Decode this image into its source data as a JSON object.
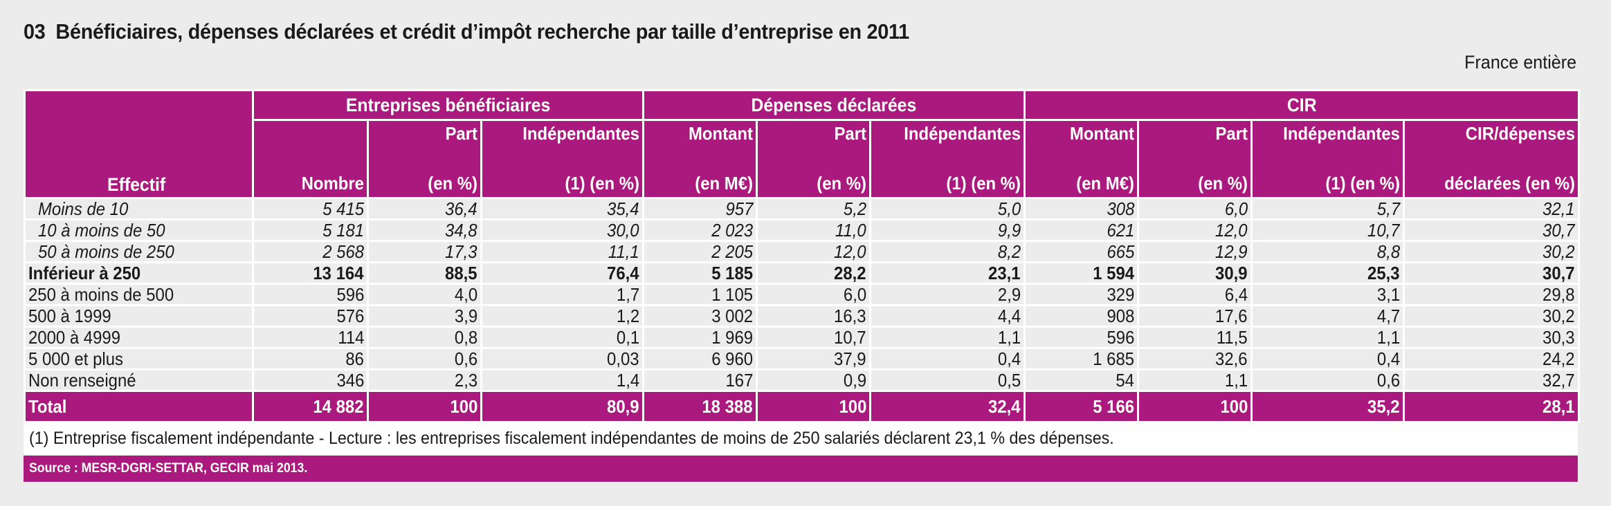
{
  "title": {
    "number": "03",
    "text": "Bénéficiaires, dépenses déclarées et crédit d’impôt recherche par taille d’entreprise en 2011"
  },
  "scope": "France entière",
  "colors": {
    "accent": "#aa197e",
    "row_bg": "#ececec"
  },
  "table": {
    "row_header": "Effectif",
    "groups": [
      {
        "label": "Entreprises bénéficiaires",
        "span": 3
      },
      {
        "label": "Dépenses déclarées",
        "span": 3
      },
      {
        "label": "CIR",
        "span": 4
      }
    ],
    "columns": [
      {
        "line1": "",
        "line2": "Nombre"
      },
      {
        "line1": "Part",
        "line2": "(en %)"
      },
      {
        "line1": "Indépendantes",
        "line2": "(1) (en %)"
      },
      {
        "line1": "Montant",
        "line2": "(en M€)"
      },
      {
        "line1": "Part",
        "line2": "(en %)"
      },
      {
        "line1": "Indépendantes",
        "line2": "(1) (en %)"
      },
      {
        "line1": "Montant",
        "line2": "(en M€)"
      },
      {
        "line1": "Part",
        "line2": "(en %)"
      },
      {
        "line1": "Indépendantes",
        "line2": "(1) (en %)"
      },
      {
        "line1": "CIR/dépenses",
        "line2": "déclarées (en %)"
      }
    ],
    "rows": [
      {
        "label": "Moins de 10",
        "style": "sub",
        "values": [
          "5 415",
          "36,4",
          "35,4",
          "957",
          "5,2",
          "5,0",
          "308",
          "6,0",
          "5,7",
          "32,1"
        ]
      },
      {
        "label": "10 à moins de 50",
        "style": "sub",
        "values": [
          "5 181",
          "34,8",
          "30,0",
          "2 023",
          "11,0",
          "9,9",
          "621",
          "12,0",
          "10,7",
          "30,7"
        ]
      },
      {
        "label": "50 à moins de 250",
        "style": "sub",
        "values": [
          "2 568",
          "17,3",
          "11,1",
          "2 205",
          "12,0",
          "8,2",
          "665",
          "12,9",
          "8,8",
          "30,2"
        ]
      },
      {
        "label": "Inférieur à 250",
        "style": "bold",
        "values": [
          "13 164",
          "88,5",
          "76,4",
          "5 185",
          "28,2",
          "23,1",
          "1 594",
          "30,9",
          "25,3",
          "30,7"
        ]
      },
      {
        "label": "250 à moins de 500",
        "style": "normal",
        "values": [
          "596",
          "4,0",
          "1,7",
          "1 105",
          "6,0",
          "2,9",
          "329",
          "6,4",
          "3,1",
          "29,8"
        ]
      },
      {
        "label": "500 à 1999",
        "style": "normal",
        "values": [
          "576",
          "3,9",
          "1,2",
          "3 002",
          "16,3",
          "4,4",
          "908",
          "17,6",
          "4,7",
          "30,2"
        ]
      },
      {
        "label": "2000 à 4999",
        "style": "normal",
        "values": [
          "114",
          "0,8",
          "0,1",
          "1 969",
          "10,7",
          "1,1",
          "596",
          "11,5",
          "1,1",
          "30,3"
        ]
      },
      {
        "label": "5 000 et plus",
        "style": "normal",
        "values": [
          "86",
          "0,6",
          "0,03",
          "6 960",
          "37,9",
          "0,4",
          "1 685",
          "32,6",
          "0,4",
          "24,2"
        ]
      },
      {
        "label": "Non renseigné",
        "style": "normal",
        "values": [
          "346",
          "2,3",
          "1,4",
          "167",
          "0,9",
          "0,5",
          "54",
          "1,1",
          "0,6",
          "32,7"
        ]
      }
    ],
    "total": {
      "label": "Total",
      "values": [
        "14 882",
        "100",
        "80,9",
        "18 388",
        "100",
        "32,4",
        "5 166",
        "100",
        "35,2",
        "28,1"
      ]
    }
  },
  "note": "(1) Entreprise fiscalement indépendante - Lecture : les entreprises fiscalement indépendantes de moins de 250 salariés déclarent 23,1 % des dépenses.",
  "source": "Source : MESR-DGRI-SETTAR, GECIR mai 2013."
}
